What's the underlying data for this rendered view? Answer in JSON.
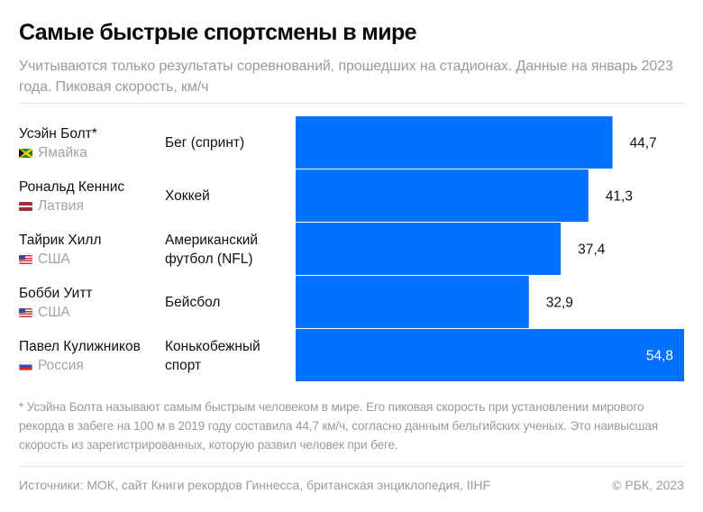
{
  "header": {
    "title": "Самые быстрые спортсмены в мире",
    "subtitle": "Учитываются только результаты соревнований, прошедших на стадионах. Данные на январь 2023 года. Пиковая скорость, км/ч"
  },
  "rows": [
    {
      "name": "Усэйн Болт*",
      "country": "Ямайка",
      "flag_icon": "jamaica-flag-icon",
      "sport": "Бег (спринт)"
    },
    {
      "name": "Рональд Кеннис",
      "country": "Латвия",
      "flag_icon": "latvia-flag-icon",
      "sport": "Хоккей"
    },
    {
      "name": "Тайрик Хилл",
      "country": "США",
      "flag_icon": "usa-flag-icon",
      "sport": "Американский футбол (NFL)"
    },
    {
      "name": "Бобби Уитт",
      "country": "США",
      "flag_icon": "usa-flag-icon",
      "sport": "Бейсбол"
    },
    {
      "name": "Павел Кулижников",
      "country": "Россия",
      "flag_icon": "russia-flag-icon",
      "sport": "Конькобежный спорт"
    }
  ],
  "chart_data": {
    "type": "bar",
    "orientation": "horizontal",
    "title": "Самые быстрые спортсмены в мире",
    "xlabel": "Пиковая скорость, км/ч",
    "ylabel": "",
    "categories": [
      "Усэйн Болт*",
      "Рональд Кеннис",
      "Тайрик Хилл",
      "Бобби Уитт",
      "Павел Кулижников"
    ],
    "values": [
      44.7,
      41.3,
      37.4,
      32.9,
      54.8
    ],
    "value_labels": [
      "44,7",
      "41,3",
      "37,4",
      "32,9",
      "54,8"
    ],
    "xlim": [
      0,
      55
    ],
    "grid": false,
    "legend": "none",
    "bar_color": "#0070ff",
    "label_color_outside": "#111111",
    "label_color_inside": "#ffffff"
  },
  "footnote": "* Усэйна Болта называют самым быстрым человеком в мире. Его пиковая скорость при установлении мирового рекорда в забеге на 100 м в 2019 году составила 44,7 км/ч, согласно данным бельгийских ученых. Это наивысшая скорость из зарегистрированных, которую развил человек при беге.",
  "footer": {
    "sources": "Источники: МОК, сайт Книги рекордов Гиннесса, британская энциклопедия, IIHF",
    "copyright": "© РБК, 2023"
  }
}
